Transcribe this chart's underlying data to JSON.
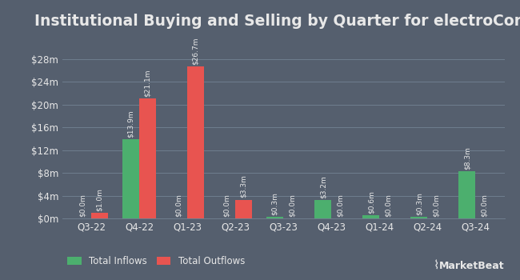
{
  "title": "Institutional Buying and Selling by Quarter for electroCore",
  "quarters": [
    "Q3-22",
    "Q4-22",
    "Q1-23",
    "Q2-23",
    "Q3-23",
    "Q4-23",
    "Q1-24",
    "Q2-24",
    "Q3-24"
  ],
  "inflows": [
    0.0,
    13.9,
    0.0,
    0.0,
    0.3,
    3.2,
    0.6,
    0.3,
    8.3
  ],
  "outflows": [
    1.0,
    21.1,
    26.7,
    3.3,
    0.0,
    0.0,
    0.0,
    0.0,
    0.0
  ],
  "inflow_labels": [
    "$0.0m",
    "$13.9m",
    "$0.0m",
    "$0.0m",
    "$0.3m",
    "$3.2m",
    "$0.6m",
    "$0.3m",
    "$8.3m"
  ],
  "outflow_labels": [
    "$1.0m",
    "$21.1m",
    "$26.7m",
    "$3.3m",
    "$0.0m",
    "$0.0m",
    "$0.0m",
    "$0.0m",
    "$0.0m"
  ],
  "inflow_color": "#4caf6e",
  "outflow_color": "#e85450",
  "fig_background_color": "#555f6e",
  "axes_background_color": "#555f6e",
  "grid_color": "#6e7d8e",
  "text_color": "#e8e8e8",
  "legend_labels": [
    "Total Inflows",
    "Total Outflows"
  ],
  "ylim": [
    0,
    32
  ],
  "yticks": [
    0,
    4,
    8,
    12,
    16,
    20,
    24,
    28
  ],
  "ytick_labels": [
    "$0m",
    "$4m",
    "$8m",
    "$12m",
    "$16m",
    "$20m",
    "$24m",
    "$28m"
  ],
  "bar_width": 0.35,
  "title_fontsize": 13.5,
  "label_fontsize": 6.5,
  "tick_fontsize": 8.5,
  "legend_fontsize": 8.5,
  "marketbeat_text": "MarketBeat"
}
